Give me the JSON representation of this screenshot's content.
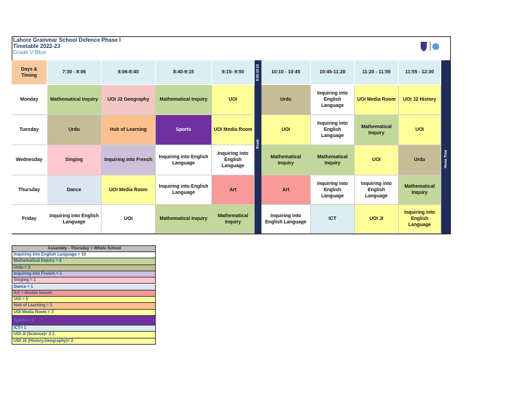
{
  "header": {
    "title_lines": [
      "Lahore Grammar School Defence Phase I",
      "Timetable 2022-23"
    ],
    "subtitle": "Grade V Blue"
  },
  "schedule": {
    "corner": "Days & Timing",
    "times": [
      "7:30 - 8:06",
      "8:06-8:40",
      "8:40-9:15",
      "9:15- 9:50",
      "10:10 - 10:45",
      "10:45-11:20",
      "11:20 - 11:55",
      "11:55 - 12:30"
    ],
    "break_time": "9:50-10:10",
    "break_label": "Break",
    "home_label": "Home Time",
    "rows": [
      {
        "day": "Monday",
        "cells": [
          {
            "text": "Mathematical Inquiry",
            "color": "#c4d79b"
          },
          {
            "text": "UOI J2 Geography",
            "color": "#f4c7c3"
          },
          {
            "text": "Mathematical Inquiry",
            "color": "#c4d79b"
          },
          {
            "text": "UOI",
            "color": "#ffff99"
          },
          {
            "text": "Urdu",
            "color": "#c4bd97"
          },
          {
            "text": "Inquiring into English Language",
            "color": "#ffffff"
          },
          {
            "text": "UOI Media Room",
            "color": "#ffff99"
          },
          {
            "text": "UOI J2 History",
            "color": "#ffff99"
          }
        ]
      },
      {
        "day": "Tuesday",
        "cells": [
          {
            "text": "Urdu",
            "color": "#c4bd97"
          },
          {
            "text": "Hub of Learning",
            "color": "#fac090"
          },
          {
            "text": "Sports",
            "color": "#7030a0"
          },
          {
            "text": "UOI Media Room",
            "color": "#ffff99"
          },
          {
            "text": "UOI",
            "color": "#ffff99"
          },
          {
            "text": "Inquiring into English Language",
            "color": "#ffffff"
          },
          {
            "text": "Mathematical Inquiry",
            "color": "#c4d79b"
          },
          {
            "text": "UOI",
            "color": "#ffff99"
          }
        ]
      },
      {
        "day": "Wednesday",
        "cells": [
          {
            "text": "Singing",
            "color": "#ffc7ce"
          },
          {
            "text": "Inquiring into French",
            "color": "#ccc0da"
          },
          {
            "text": "Inquiring into English Language",
            "color": "#ffffff"
          },
          {
            "text": "Inquiring into English Language",
            "color": "#ffffff"
          },
          {
            "text": "Mathematical Inquiry",
            "color": "#c4d79b"
          },
          {
            "text": "Mathematical Inquiry",
            "color": "#c4d79b"
          },
          {
            "text": "UOI",
            "color": "#ffff99"
          },
          {
            "text": "Urdu",
            "color": "#c4bd97"
          }
        ]
      },
      {
        "day": "Thursday",
        "cells": [
          {
            "text": "Dance",
            "color": "#dce6f1"
          },
          {
            "text": "UOI Media Room",
            "color": "#ffff99"
          },
          {
            "text": "Inquiring into English Language",
            "color": "#ffffff"
          },
          {
            "text": "Art",
            "color": "#f79a9a"
          },
          {
            "text": "Art",
            "color": "#f79a9a"
          },
          {
            "text": "Inquiring into English Language",
            "color": "#ffffff"
          },
          {
            "text": "Inquiring into English Language",
            "color": "#ffffff"
          },
          {
            "text": "Mathematical Inquiry",
            "color": "#c4d79b"
          }
        ]
      },
      {
        "day": "Friday",
        "cells": [
          {
            "text": "Inquiring into English Language",
            "color": "#ffffff"
          },
          {
            "text": "UOI",
            "color": "#ffffff"
          },
          {
            "text": "Mathematical Inquiry",
            "color": "#c4d79b"
          },
          {
            "text": "Mathematical Inquiry",
            "color": "#c4d79b"
          },
          {
            "text": "Inquiring into English Language",
            "color": "#ffffff"
          },
          {
            "text": "ICT",
            "color": "#daeef3"
          },
          {
            "text": "UOI   JI",
            "color": "#ffff99"
          },
          {
            "text": "Inquiring into English Language",
            "color": "#ffff99"
          }
        ]
      }
    ]
  },
  "legend": {
    "heading": "Assembly - Thursday = Whole School",
    "items": [
      {
        "text": "Inquiring into English Language = 10",
        "color": "#ffffff"
      },
      {
        "text": "Mathematical Inquiry = 8",
        "color": "#c4d79b"
      },
      {
        "text": "Urdu = 3",
        "color": "#c4bd97"
      },
      {
        "text": "Inquiring into French = 1",
        "color": "#ccc0da"
      },
      {
        "text": "Singing = 1",
        "color": "#ffc7ce"
      },
      {
        "text": "Dance = 1",
        "color": "#dce6f1"
      },
      {
        "text": "Art = double lesson",
        "color": "#f79a9a"
      },
      {
        "text": "UOI = 5",
        "color": "#ffff99"
      },
      {
        "text": "Hub of Learning = 1",
        "color": "#fac090"
      },
      {
        "text": "UOI Media Room = 3",
        "color": "#ffff99"
      },
      {
        "text": "Sports = 1",
        "color": "#7030a0"
      },
      {
        "text": "ICT= 1",
        "color": "#daeef3"
      },
      {
        "text": "UOI JI (Science)= 2 1",
        "color": "#ffff99"
      },
      {
        "text": "UOI J2 (History,Geography)= 2",
        "color": "#ffff99"
      }
    ]
  }
}
